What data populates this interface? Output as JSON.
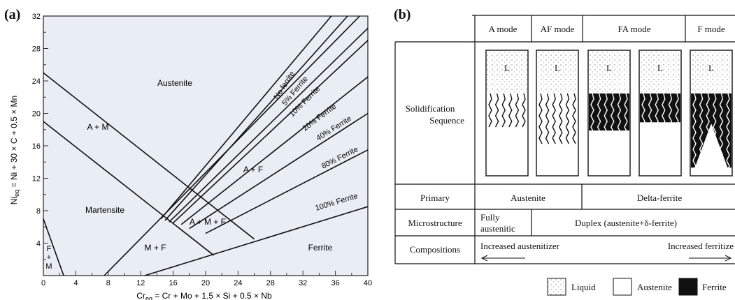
{
  "panel_a": {
    "label": "(a)",
    "xlabel": "Cr",
    "xlabel_sub": "eq",
    "xlabel_rest": " = Cr + Mo + 1.5 × Si + 0.5 × Nb",
    "ylabel": "Ni",
    "ylabel_sub": "eq",
    "ylabel_rest": " = Ni + 30 × C + 0.5 × Mn",
    "x_ticks": [
      "0",
      "4",
      "8",
      "12",
      "16",
      "20",
      "24",
      "28",
      "32",
      "36",
      "40"
    ],
    "y_ticks": [
      "4",
      "8",
      "12",
      "16",
      "20",
      "24",
      "28",
      "32"
    ],
    "region_labels": {
      "austenite": "Austenite",
      "a_m": "A + M",
      "martensite": "Martensite",
      "a_m_f": "A + M + F",
      "a_f": "A + F",
      "m_f": "M + F",
      "ferrite": "Ferrite",
      "f_m_1": "F",
      "f_m_2": "+",
      "f_m_3": "M"
    },
    "line_labels": {
      "no_ferrite": "No ferrite",
      "p5": "5% Ferrite",
      "p10": "10% Ferrite",
      "p20": "20% Ferrite",
      "p40": "40% Ferrite",
      "p80": "80% Ferrite",
      "p100": "100% Ferrite"
    },
    "colors": {
      "background": "#e9edf4",
      "lines": "#111111"
    }
  },
  "panel_b": {
    "label": "(b)",
    "modes": [
      "A mode",
      "AF mode",
      "FA mode",
      "F mode"
    ],
    "row_solidification_1": "Solidification",
    "row_solidification_2": "Sequence",
    "liquid_symbol": "L",
    "row_primary": "Primary",
    "primary_austenite": "Austenite",
    "primary_delta": "Delta-ferrite",
    "row_microstructure": "Microstructure",
    "micro_fully_1": "Fully",
    "micro_fully_2": "austenitic",
    "micro_duplex": "Duplex (austenite+δ-ferrite)",
    "row_compositions": "Compositions",
    "comp_left": "Increased austenitizer",
    "comp_right": "Increased ferritize",
    "legend": {
      "liquid": "Liquid",
      "austenite": "Austenite",
      "ferrite": "Ferrite"
    }
  }
}
